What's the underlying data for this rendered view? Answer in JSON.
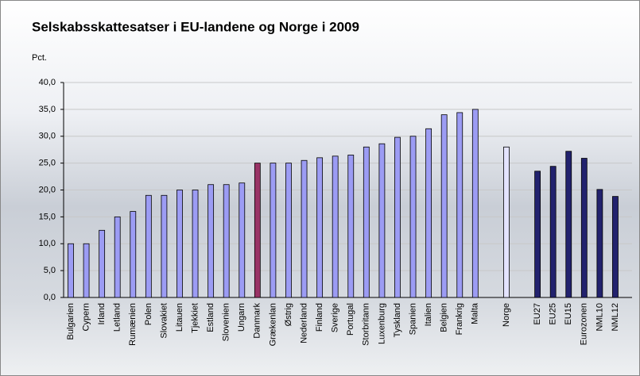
{
  "chart_data": {
    "type": "bar",
    "title": "Selskabsskattesatser i EU-landene og Norge i 2009",
    "y_label": "Pct.",
    "categories": [
      "Bulgarien",
      "Cypern",
      "Irland",
      "Letland",
      "Rumænien",
      "Polen",
      "Slovakiet",
      "Litauen",
      "Tjekkiet",
      "Estland",
      "Slovenien",
      "Ungarn",
      "Danmark",
      "Grækenlan",
      "Østrig",
      "Nederland",
      "Finland",
      "Sverige",
      "Portugal",
      "Storbritann",
      "Luxenburg",
      "Tyskland",
      "Spanien",
      "Italien",
      "Belgien",
      "Frankrig",
      "Malta",
      null,
      "Norge",
      null,
      "EU27",
      "EU25",
      "EU15",
      "Eurozonen",
      "NML10",
      "NML12"
    ],
    "values": [
      10,
      10,
      12.5,
      15,
      16,
      19,
      19,
      20,
      20,
      21,
      21,
      21.3,
      25,
      25,
      25,
      25.5,
      26,
      26.3,
      26.5,
      28,
      28.6,
      29.8,
      30,
      31.4,
      34,
      34.4,
      35,
      null,
      28,
      null,
      23.5,
      24.4,
      27.2,
      25.9,
      20.1,
      18.8
    ],
    "colors": [
      "#9c9cf4",
      "#9c9cf4",
      "#9c9cf4",
      "#9c9cf4",
      "#9c9cf4",
      "#9c9cf4",
      "#9c9cf4",
      "#9c9cf4",
      "#9c9cf4",
      "#9c9cf4",
      "#9c9cf4",
      "#9c9cf4",
      "#993366",
      "#9c9cf4",
      "#9c9cf4",
      "#9c9cf4",
      "#9c9cf4",
      "#9c9cf4",
      "#9c9cf4",
      "#9c9cf4",
      "#9c9cf4",
      "#9c9cf4",
      "#9c9cf4",
      "#9c9cf4",
      "#9c9cf4",
      "#9c9cf4",
      "#9c9cf4",
      null,
      "#e4e4ff",
      null,
      "#22226e",
      "#22226e",
      "#22226e",
      "#22226e",
      "#22226e",
      "#22226e"
    ],
    "ylim": [
      0,
      40
    ],
    "yticks": [
      {
        "value": 0,
        "label": "0,0"
      },
      {
        "value": 5,
        "label": "5,0"
      },
      {
        "value": 10,
        "label": "10,0"
      },
      {
        "value": 15,
        "label": "15,0"
      },
      {
        "value": 20,
        "label": "20,0"
      },
      {
        "value": 25,
        "label": "25,0"
      },
      {
        "value": 30,
        "label": "30,0"
      },
      {
        "value": 35,
        "label": "35,0"
      },
      {
        "value": 40,
        "label": "40,0"
      }
    ],
    "grid": true
  }
}
